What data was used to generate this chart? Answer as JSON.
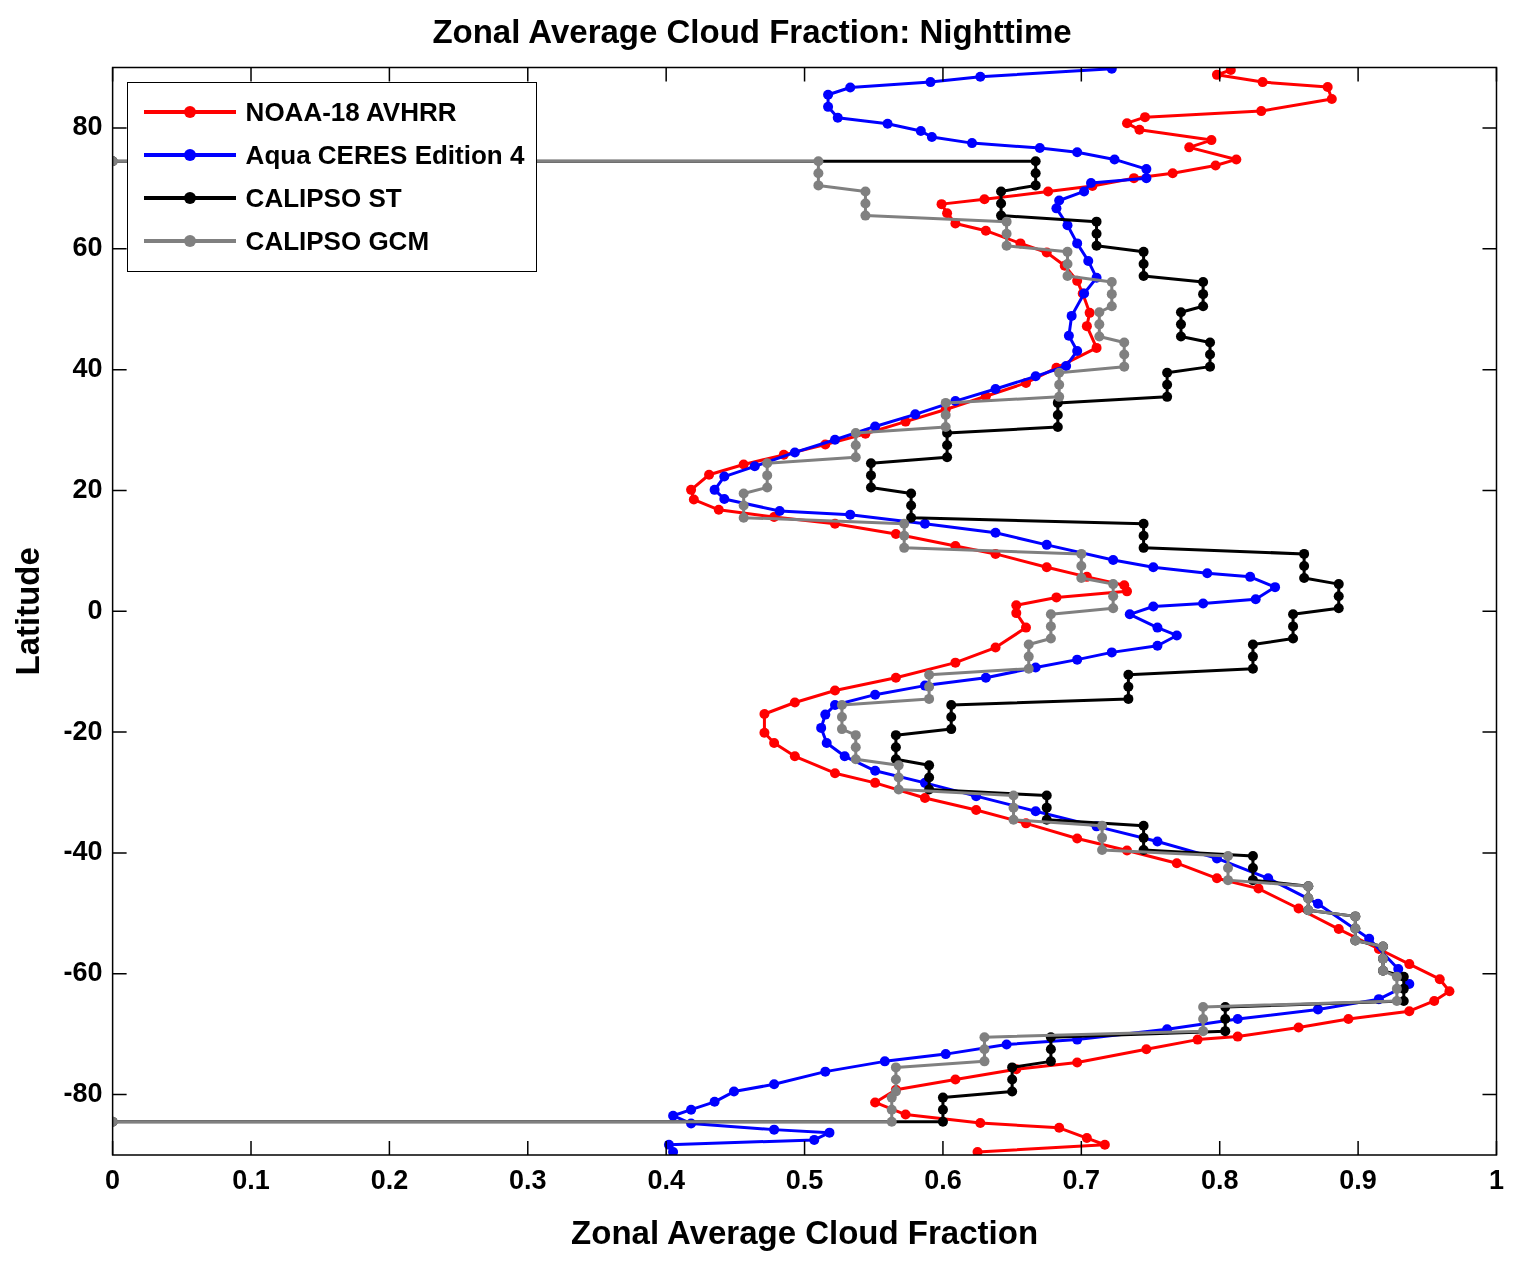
{
  "chart_data": {
    "type": "line",
    "title": "Zonal Average Cloud Fraction: Nighttime",
    "xlabel": "Zonal Average Cloud Fraction",
    "ylabel": "Latitude",
    "xlim": [
      0,
      1
    ],
    "ylim": [
      -90,
      90
    ],
    "xticks": [
      0,
      0.1,
      0.2,
      0.3,
      0.4,
      0.5,
      0.6,
      0.7,
      0.8,
      0.9,
      1
    ],
    "yticks": [
      -80,
      -60,
      -40,
      -20,
      0,
      20,
      40,
      60,
      80
    ],
    "grid": false,
    "legend": "top left",
    "marker": "circle",
    "line_style": "solid",
    "series": [
      {
        "name": "NOAA-18 AVHRR",
        "color": "#ff0000",
        "x": [
          0.808,
          0.798,
          0.831,
          0.878,
          0.881,
          0.83,
          0.746,
          0.733,
          0.742,
          0.794,
          0.778,
          0.812,
          0.797,
          0.766,
          0.738,
          0.708,
          0.676,
          0.63,
          0.599,
          0.603,
          0.609,
          0.631,
          0.656,
          0.675,
          0.688,
          0.697,
          0.701,
          0.706,
          0.704,
          0.711,
          0.682,
          0.66,
          0.631,
          0.602,
          0.573,
          0.544,
          0.515,
          0.485,
          0.456,
          0.431,
          0.418,
          0.42,
          0.438,
          0.478,
          0.522,
          0.566,
          0.609,
          0.638,
          0.675,
          0.704,
          0.731,
          0.733,
          0.682,
          0.653,
          0.653,
          0.66,
          0.638,
          0.609,
          0.566,
          0.522,
          0.493,
          0.471,
          0.471,
          0.478,
          0.493,
          0.522,
          0.551,
          0.587,
          0.624,
          0.66,
          0.697,
          0.733,
          0.769,
          0.798,
          0.828,
          0.857,
          0.886,
          0.915,
          0.937,
          0.959,
          0.966,
          0.955,
          0.937,
          0.893,
          0.857,
          0.813,
          0.784,
          0.747,
          0.697,
          0.653,
          0.609,
          0.566,
          0.551,
          0.573,
          0.627,
          0.684,
          0.704,
          0.717,
          0.625
        ],
        "values": [
          89.6,
          88.8,
          87.6,
          86.8,
          84.8,
          82.8,
          81.8,
          80.8,
          79.7,
          78,
          76.8,
          74.8,
          73.8,
          72.5,
          71.7,
          70.4,
          69.5,
          68.2,
          67.4,
          65.9,
          64.2,
          63,
          60.9,
          59.4,
          57.2,
          54.7,
          52.6,
          49.4,
          47.2,
          43.6,
          40.3,
          37.8,
          35.6,
          33.4,
          31.4,
          29.4,
          27.6,
          25.9,
          24.3,
          22.6,
          20.1,
          18.5,
          16.8,
          15.6,
          14.5,
          12.8,
          10.8,
          9.5,
          7.3,
          5.7,
          4.3,
          3.3,
          2.3,
          1,
          -0.3,
          -2.7,
          -6,
          -8.5,
          -11,
          -13.1,
          -15.1,
          -17,
          -20.1,
          -21.8,
          -24,
          -26.8,
          -28.4,
          -30.9,
          -32.9,
          -35.1,
          -37.6,
          -39.6,
          -41.7,
          -44.2,
          -45.9,
          -49.2,
          -52.6,
          -55.9,
          -58.4,
          -60.9,
          -62.9,
          -64.5,
          -66.2,
          -67.5,
          -68.9,
          -70.4,
          -70.9,
          -72.5,
          -74.7,
          -75.8,
          -77.5,
          -79.2,
          -81.3,
          -83.3,
          -84.7,
          -85.5,
          -87.2,
          -88.3,
          -89.5
        ]
      },
      {
        "name": "Aqua CERES Edition 4",
        "color": "#0000ff",
        "x": [
          0.722,
          0.627,
          0.591,
          0.533,
          0.517,
          0.517,
          0.524,
          0.56,
          0.584,
          0.592,
          0.621,
          0.67,
          0.697,
          0.724,
          0.747,
          0.747,
          0.707,
          0.702,
          0.684,
          0.682,
          0.69,
          0.697,
          0.705,
          0.711,
          0.702,
          0.693,
          0.691,
          0.697,
          0.689,
          0.667,
          0.638,
          0.609,
          0.58,
          0.551,
          0.522,
          0.493,
          0.464,
          0.442,
          0.435,
          0.442,
          0.482,
          0.533,
          0.587,
          0.638,
          0.675,
          0.723,
          0.752,
          0.791,
          0.822,
          0.84,
          0.826,
          0.788,
          0.752,
          0.735,
          0.755,
          0.769,
          0.755,
          0.722,
          0.697,
          0.667,
          0.631,
          0.587,
          0.551,
          0.522,
          0.515,
          0.512,
          0.516,
          0.529,
          0.551,
          0.587,
          0.624,
          0.667,
          0.711,
          0.755,
          0.798,
          0.835,
          0.871,
          0.908,
          0.929,
          0.937,
          0.915,
          0.871,
          0.813,
          0.762,
          0.697,
          0.646,
          0.602,
          0.558,
          0.515,
          0.478,
          0.449,
          0.435,
          0.418,
          0.405,
          0.418,
          0.478,
          0.518,
          0.507,
          0.402,
          0.405
        ],
        "values": [
          89.8,
          88.5,
          87.6,
          86.7,
          85.5,
          83.5,
          81.7,
          80.7,
          79.5,
          78.5,
          77.5,
          76.7,
          76,
          74.8,
          73.2,
          71.7,
          70.9,
          69.5,
          68,
          66.7,
          63.9,
          60.9,
          58,
          55.2,
          52.6,
          48.9,
          45.6,
          43.1,
          40.6,
          38.9,
          36.8,
          34.8,
          32.6,
          30.6,
          28.4,
          26.3,
          24,
          22.3,
          20.1,
          18.6,
          16.6,
          16,
          14.5,
          13,
          11,
          8.5,
          7.3,
          6.3,
          5.7,
          4,
          2,
          1.3,
          0.8,
          -0.5,
          -2.7,
          -4,
          -5.7,
          -6.8,
          -8,
          -9.3,
          -11,
          -12.3,
          -13.8,
          -15.5,
          -17.1,
          -19.3,
          -21.8,
          -24,
          -26.4,
          -28.4,
          -30.6,
          -33.1,
          -35.6,
          -38.1,
          -40.9,
          -44.2,
          -48.4,
          -54.2,
          -59.2,
          -61.7,
          -64.2,
          -65.9,
          -67.5,
          -69.2,
          -70.9,
          -71.7,
          -73.3,
          -74.5,
          -76.2,
          -78.3,
          -79.5,
          -81.2,
          -82.5,
          -83.5,
          -84.8,
          -85.8,
          -86.3,
          -87.5,
          -88.3,
          -89.5
        ]
      },
      {
        "name": "CALIPSO ST",
        "color": "#000000",
        "x": [
          0,
          0.667,
          0.667,
          0.667,
          0.642,
          0.642,
          0.642,
          0.711,
          0.711,
          0.711,
          0.745,
          0.745,
          0.745,
          0.788,
          0.788,
          0.788,
          0.772,
          0.772,
          0.772,
          0.793,
          0.793,
          0.793,
          0.762,
          0.762,
          0.762,
          0.683,
          0.683,
          0.683,
          0.603,
          0.603,
          0.603,
          0.548,
          0.548,
          0.548,
          0.577,
          0.577,
          0.577,
          0.745,
          0.745,
          0.745,
          0.861,
          0.861,
          0.861,
          0.886,
          0.886,
          0.886,
          0.853,
          0.853,
          0.853,
          0.824,
          0.824,
          0.824,
          0.734,
          0.734,
          0.734,
          0.606,
          0.606,
          0.606,
          0.566,
          0.566,
          0.566,
          0.59,
          0.59,
          0.59,
          0.675,
          0.675,
          0.675,
          0.745,
          0.745,
          0.745,
          0.824,
          0.824,
          0.824,
          0.864,
          0.864,
          0.864,
          0.898,
          0.898,
          0.898,
          0.918,
          0.918,
          0.918,
          0.933,
          0.933,
          0.933,
          0.804,
          0.804,
          0.804,
          0.678,
          0.678,
          0.678,
          0.65,
          0.65,
          0.65,
          0.6,
          0.6,
          0.6,
          0
        ],
        "values": [
          74.5,
          74.5,
          72.5,
          70.5,
          69.5,
          67.5,
          65.5,
          64.5,
          62.5,
          60.5,
          59.5,
          57.5,
          55.5,
          54.5,
          52.5,
          50.5,
          49.5,
          47.5,
          45.5,
          44.5,
          42.5,
          40.5,
          39.5,
          37.5,
          35.5,
          34.5,
          32.5,
          30.5,
          29.5,
          27.5,
          25.5,
          24.5,
          22.5,
          20.5,
          19.5,
          17.5,
          15.5,
          14.5,
          12.5,
          10.5,
          9.5,
          7.5,
          5.5,
          4.5,
          2.5,
          0.5,
          -0.5,
          -2.5,
          -4.5,
          -5.5,
          -7.5,
          -9.5,
          -10.5,
          -12.5,
          -14.5,
          -15.5,
          -17.5,
          -19.5,
          -20.5,
          -22.5,
          -24.5,
          -25.5,
          -27.5,
          -29.5,
          -30.5,
          -32.5,
          -34.5,
          -35.5,
          -37.5,
          -39.5,
          -40.5,
          -42.5,
          -44.5,
          -45.5,
          -47.5,
          -49.5,
          -50.5,
          -52.5,
          -54.5,
          -55.5,
          -57.5,
          -59.5,
          -60.5,
          -62.5,
          -64.5,
          -65.5,
          -67.5,
          -69.5,
          -70.5,
          -72.5,
          -74.5,
          -75.5,
          -77.5,
          -79.5,
          -80.5,
          -82.5,
          -84.5,
          -84.5
        ]
      },
      {
        "name": "CALIPSO GCM",
        "color": "#808080",
        "x": [
          0,
          0.51,
          0.51,
          0.51,
          0.544,
          0.544,
          0.544,
          0.646,
          0.646,
          0.646,
          0.69,
          0.69,
          0.69,
          0.722,
          0.722,
          0.722,
          0.713,
          0.713,
          0.713,
          0.731,
          0.731,
          0.731,
          0.684,
          0.684,
          0.684,
          0.602,
          0.602,
          0.602,
          0.537,
          0.537,
          0.537,
          0.473,
          0.473,
          0.473,
          0.456,
          0.456,
          0.456,
          0.572,
          0.572,
          0.572,
          0.7,
          0.7,
          0.7,
          0.723,
          0.723,
          0.723,
          0.678,
          0.678,
          0.678,
          0.662,
          0.662,
          0.662,
          0.59,
          0.59,
          0.59,
          0.527,
          0.527,
          0.527,
          0.537,
          0.537,
          0.537,
          0.568,
          0.568,
          0.568,
          0.651,
          0.651,
          0.651,
          0.715,
          0.715,
          0.715,
          0.806,
          0.806,
          0.806,
          0.864,
          0.864,
          0.864,
          0.898,
          0.898,
          0.898,
          0.918,
          0.918,
          0.918,
          0.928,
          0.928,
          0.928,
          0.788,
          0.788,
          0.788,
          0.63,
          0.63,
          0.63,
          0.566,
          0.566,
          0.566,
          0.563,
          0.563,
          0.563,
          0
        ],
        "values": [
          74.5,
          74.5,
          72.5,
          70.5,
          69.5,
          67.5,
          65.5,
          64.5,
          62.5,
          60.5,
          59.5,
          57.5,
          55.5,
          54.5,
          52.5,
          50.5,
          49.5,
          47.5,
          45.5,
          44.5,
          42.5,
          40.5,
          39.5,
          37.5,
          35.5,
          34.5,
          32.5,
          30.5,
          29.5,
          27.5,
          25.5,
          24.5,
          22.5,
          20.5,
          19.5,
          17.5,
          15.5,
          14.5,
          12.5,
          10.5,
          9.5,
          7.5,
          5.5,
          4.5,
          2.5,
          0.5,
          -0.5,
          -2.5,
          -4.5,
          -5.5,
          -7.5,
          -9.5,
          -10.5,
          -12.5,
          -14.5,
          -15.5,
          -17.5,
          -19.5,
          -20.5,
          -22.5,
          -24.5,
          -25.5,
          -27.5,
          -29.5,
          -30.5,
          -32.5,
          -34.5,
          -35.5,
          -37.5,
          -39.5,
          -40.5,
          -42.5,
          -44.5,
          -45.5,
          -47.5,
          -49.5,
          -50.5,
          -52.5,
          -54.5,
          -55.5,
          -57.5,
          -59.5,
          -60.5,
          -62.5,
          -64.5,
          -65.5,
          -67.5,
          -69.5,
          -70.5,
          -72.5,
          -74.5,
          -75.5,
          -77.5,
          -79.5,
          -80.5,
          -82.5,
          -84.5,
          -84.5
        ]
      }
    ]
  }
}
